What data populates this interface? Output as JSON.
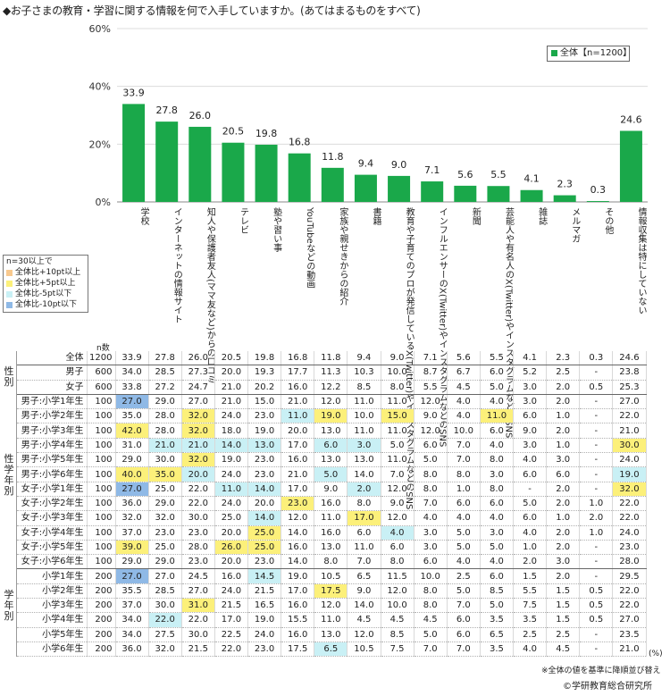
{
  "title": "◆お子さまの教育・学習に関する情報を何で入手していますか。(あてはまるものをすべて)",
  "legend": {
    "label": "全体【n=1200】"
  },
  "colors": {
    "bar": "#1aa84a",
    "sig_up10": "#f8c98e",
    "sig_up5": "#fcf07a",
    "sig_down5": "#c9f0f5",
    "sig_down10": "#8fb9e6"
  },
  "sig_legend": [
    "n=30以上で",
    "全体比+10pt以上",
    "全体比+5pt以上",
    "全体比-5pt以下",
    "全体比-10pt以下"
  ],
  "n_label": "n数",
  "notes": {
    "unit": "(%)",
    "sort": "※全体の値を基準に降順並び替え",
    "copyright": "©学研教育総合研究所"
  },
  "side_labels": {
    "gender": "性別",
    "gender_grade": "性学年別",
    "grade": "学年別"
  },
  "chart_data": {
    "type": "bar",
    "ylim": [
      0,
      60
    ],
    "yticks": [
      "0%",
      "20%",
      "40%",
      "60%"
    ],
    "categories": [
      "学校",
      "インターネットの情報サイト",
      "知人や保護者友人(ママ友など)からの口コミ",
      "テレビ",
      "塾や習い事",
      "YouTubeなどの動画",
      "家族や親せきからの紹介",
      "書籍",
      "教育や子育てのプロが発信しているX(Twitter)やインスタグラムなどのSNS",
      "インフルエンサーのX(Twitter)やインスタグラムなどのSNS",
      "新聞",
      "芸能人や有名人のX(Twitter)やインスタグラムなどのSNS",
      "雑誌",
      "メルマガ",
      "その他",
      "情報収集は特にしていない"
    ],
    "series": [
      {
        "name": "全体【n=1200】",
        "values": [
          33.9,
          27.8,
          26.0,
          20.5,
          19.8,
          16.8,
          11.8,
          9.4,
          9.0,
          7.1,
          5.6,
          5.5,
          4.1,
          2.3,
          0.3,
          24.6
        ]
      }
    ],
    "table": [
      {
        "label": "全体",
        "n": "1200",
        "v": [
          "33.9",
          "27.8",
          "26.0",
          "20.5",
          "19.8",
          "16.8",
          "11.8",
          "9.4",
          "9.0",
          "7.1",
          "5.6",
          "5.5",
          "4.1",
          "2.3",
          "0.3",
          "24.6"
        ],
        "h": {}
      },
      {
        "label": "男子",
        "n": "600",
        "v": [
          "34.0",
          "28.5",
          "27.3",
          "20.0",
          "19.3",
          "17.7",
          "11.3",
          "10.3",
          "10.0",
          "8.7",
          "6.7",
          "6.0",
          "5.2",
          "2.5",
          "-",
          "23.8"
        ],
        "h": {}
      },
      {
        "label": "女子",
        "n": "600",
        "v": [
          "33.8",
          "27.2",
          "24.7",
          "21.0",
          "20.2",
          "16.0",
          "12.2",
          "8.5",
          "8.0",
          "5.5",
          "4.5",
          "5.0",
          "3.0",
          "2.0",
          "0.5",
          "25.3"
        ],
        "h": {}
      },
      {
        "label": "男子:小学1年生",
        "n": "100",
        "v": [
          "27.0",
          "29.0",
          "27.0",
          "21.0",
          "15.0",
          "21.0",
          "12.0",
          "11.0",
          "11.0",
          "12.0",
          "4.0",
          "4.0",
          "3.0",
          "2.0",
          "-",
          "27.0"
        ],
        "h": {
          "0": "down10"
        }
      },
      {
        "label": "男子:小学2年生",
        "n": "100",
        "v": [
          "35.0",
          "28.0",
          "32.0",
          "24.0",
          "23.0",
          "11.0",
          "19.0",
          "10.0",
          "15.0",
          "9.0",
          "4.0",
          "11.0",
          "6.0",
          "1.0",
          "-",
          "22.0"
        ],
        "h": {
          "2": "up5",
          "5": "down5",
          "6": "up5",
          "8": "up5",
          "11": "up5"
        }
      },
      {
        "label": "男子:小学3年生",
        "n": "100",
        "v": [
          "42.0",
          "28.0",
          "32.0",
          "18.0",
          "19.0",
          "20.0",
          "13.0",
          "11.0",
          "11.0",
          "12.0",
          "10.0",
          "6.0",
          "9.0",
          "2.0",
          "-",
          "21.0"
        ],
        "h": {
          "0": "up5",
          "2": "up5"
        }
      },
      {
        "label": "男子:小学4年生",
        "n": "100",
        "v": [
          "31.0",
          "21.0",
          "21.0",
          "14.0",
          "13.0",
          "17.0",
          "6.0",
          "3.0",
          "5.0",
          "6.0",
          "7.0",
          "4.0",
          "3.0",
          "1.0",
          "-",
          "30.0"
        ],
        "h": {
          "1": "down5",
          "2": "down5",
          "3": "down5",
          "4": "down5",
          "6": "down5",
          "7": "down5",
          "15": "up5"
        }
      },
      {
        "label": "男子:小学5年生",
        "n": "100",
        "v": [
          "29.0",
          "30.0",
          "32.0",
          "19.0",
          "23.0",
          "16.0",
          "13.0",
          "13.0",
          "11.0",
          "5.0",
          "7.0",
          "8.0",
          "4.0",
          "3.0",
          "-",
          "24.0"
        ],
        "h": {
          "2": "up5"
        }
      },
      {
        "label": "男子:小学6年生",
        "n": "100",
        "v": [
          "40.0",
          "35.0",
          "20.0",
          "24.0",
          "23.0",
          "21.0",
          "5.0",
          "14.0",
          "7.0",
          "8.0",
          "8.0",
          "3.0",
          "6.0",
          "6.0",
          "-",
          "19.0"
        ],
        "h": {
          "0": "up5",
          "1": "up5",
          "2": "down5",
          "6": "down5",
          "15": "down5"
        }
      },
      {
        "label": "女子:小学1年生",
        "n": "100",
        "v": [
          "27.0",
          "25.0",
          "22.0",
          "11.0",
          "14.0",
          "17.0",
          "9.0",
          "2.0",
          "12.0",
          "8.0",
          "1.0",
          "8.0",
          "-",
          "2.0",
          "-",
          "32.0"
        ],
        "h": {
          "0": "down10",
          "3": "down5",
          "4": "down5",
          "7": "down5",
          "15": "up5"
        }
      },
      {
        "label": "女子:小学2年生",
        "n": "100",
        "v": [
          "36.0",
          "29.0",
          "22.0",
          "24.0",
          "20.0",
          "23.0",
          "16.0",
          "8.0",
          "9.0",
          "7.0",
          "6.0",
          "6.0",
          "5.0",
          "2.0",
          "1.0",
          "22.0"
        ],
        "h": {
          "5": "up5"
        }
      },
      {
        "label": "女子:小学3年生",
        "n": "100",
        "v": [
          "32.0",
          "32.0",
          "30.0",
          "25.0",
          "14.0",
          "12.0",
          "11.0",
          "17.0",
          "12.0",
          "4.0",
          "4.0",
          "4.0",
          "6.0",
          "1.0",
          "2.0",
          "22.0"
        ],
        "h": {
          "4": "down5",
          "7": "up5"
        }
      },
      {
        "label": "女子:小学4年生",
        "n": "100",
        "v": [
          "37.0",
          "23.0",
          "23.0",
          "20.0",
          "25.0",
          "14.0",
          "16.0",
          "6.0",
          "4.0",
          "3.0",
          "5.0",
          "3.0",
          "4.0",
          "2.0",
          "1.0",
          "24.0"
        ],
        "h": {
          "4": "up5",
          "8": "down5"
        }
      },
      {
        "label": "女子:小学5年生",
        "n": "100",
        "v": [
          "39.0",
          "25.0",
          "28.0",
          "26.0",
          "25.0",
          "16.0",
          "13.0",
          "11.0",
          "6.0",
          "3.0",
          "5.0",
          "5.0",
          "1.0",
          "2.0",
          "-",
          "23.0"
        ],
        "h": {
          "0": "up5",
          "3": "up5",
          "4": "up5"
        }
      },
      {
        "label": "女子:小学6年生",
        "n": "100",
        "v": [
          "29.0",
          "29.0",
          "23.0",
          "20.0",
          "23.0",
          "14.0",
          "8.0",
          "7.0",
          "8.0",
          "6.0",
          "4.0",
          "4.0",
          "2.0",
          "3.0",
          "-",
          "28.0"
        ],
        "h": {}
      },
      {
        "label": "小学1年生",
        "n": "200",
        "v": [
          "27.0",
          "27.0",
          "24.5",
          "16.0",
          "14.5",
          "19.0",
          "10.5",
          "6.5",
          "11.5",
          "10.0",
          "2.5",
          "6.0",
          "1.5",
          "2.0",
          "-",
          "29.5"
        ],
        "h": {
          "0": "down10",
          "4": "down5"
        }
      },
      {
        "label": "小学2年生",
        "n": "200",
        "v": [
          "35.5",
          "28.5",
          "27.0",
          "24.0",
          "21.5",
          "17.0",
          "17.5",
          "9.0",
          "12.0",
          "8.0",
          "5.0",
          "8.5",
          "5.5",
          "1.5",
          "0.5",
          "22.0"
        ],
        "h": {
          "6": "up5"
        }
      },
      {
        "label": "小学3年生",
        "n": "200",
        "v": [
          "37.0",
          "30.0",
          "31.0",
          "21.5",
          "16.5",
          "16.0",
          "12.0",
          "14.0",
          "10.0",
          "8.0",
          "7.0",
          "5.0",
          "7.5",
          "1.5",
          "0.5",
          "22.0"
        ],
        "h": {
          "2": "up5"
        }
      },
      {
        "label": "小学4年生",
        "n": "200",
        "v": [
          "34.0",
          "22.0",
          "22.0",
          "17.0",
          "19.0",
          "15.5",
          "11.0",
          "4.5",
          "4.5",
          "4.5",
          "6.0",
          "3.5",
          "3.5",
          "1.5",
          "0.5",
          "27.0"
        ],
        "h": {
          "1": "down5"
        }
      },
      {
        "label": "小学5年生",
        "n": "200",
        "v": [
          "34.0",
          "27.5",
          "30.0",
          "22.5",
          "24.0",
          "16.0",
          "13.0",
          "12.0",
          "8.5",
          "5.0",
          "6.0",
          "6.5",
          "2.5",
          "2.5",
          "-",
          "23.5"
        ],
        "h": {}
      },
      {
        "label": "小学6年生",
        "n": "200",
        "v": [
          "36.0",
          "32.0",
          "21.5",
          "22.0",
          "23.0",
          "17.5",
          "6.5",
          "10.5",
          "7.5",
          "7.0",
          "7.0",
          "3.5",
          "4.0",
          "4.5",
          "-",
          "21.0"
        ],
        "h": {
          "6": "down5"
        }
      }
    ]
  }
}
